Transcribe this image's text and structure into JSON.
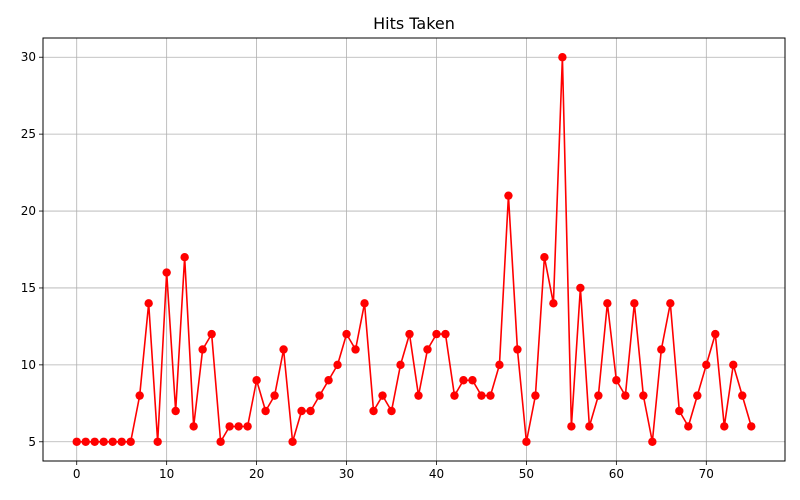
{
  "chart_data": {
    "type": "line",
    "title": "Hits Taken",
    "xlabel": "",
    "ylabel": "",
    "xlim": [
      -3.75,
      78.75
    ],
    "ylim": [
      3.75,
      31.25
    ],
    "xticks": [
      0,
      10,
      20,
      30,
      40,
      50,
      60,
      70
    ],
    "yticks": [
      5,
      10,
      15,
      20,
      25,
      30
    ],
    "grid": true,
    "legend": "none",
    "series": [
      {
        "color": "#ff0000",
        "marker": "circle",
        "x": [
          0,
          1,
          2,
          3,
          4,
          5,
          6,
          7,
          8,
          9,
          10,
          11,
          12,
          13,
          14,
          15,
          16,
          17,
          18,
          19,
          20,
          21,
          22,
          23,
          24,
          25,
          26,
          27,
          28,
          29,
          30,
          31,
          32,
          33,
          34,
          35,
          36,
          37,
          38,
          39,
          40,
          41,
          42,
          43,
          44,
          45,
          46,
          47,
          48,
          49,
          50,
          51,
          52,
          53,
          54,
          55,
          56,
          57,
          58,
          59,
          60,
          61,
          62,
          63,
          64,
          65,
          66,
          67,
          68,
          69,
          70,
          71,
          72,
          73,
          74,
          75
        ],
        "values": [
          5,
          5,
          5,
          5,
          5,
          5,
          5,
          8,
          14,
          5,
          16,
          7,
          17,
          6,
          11,
          12,
          5,
          6,
          6,
          6,
          9,
          7,
          8,
          11,
          5,
          7,
          7,
          8,
          9,
          10,
          12,
          11,
          14,
          7,
          8,
          7,
          10,
          12,
          8,
          11,
          12,
          12,
          8,
          9,
          9,
          8,
          8,
          10,
          21,
          11,
          5,
          8,
          17,
          14,
          30,
          6,
          15,
          6,
          8,
          14,
          9,
          8,
          14,
          8,
          5,
          11,
          14,
          7,
          6,
          8,
          10,
          12,
          6,
          10,
          8,
          6
        ]
      }
    ]
  }
}
